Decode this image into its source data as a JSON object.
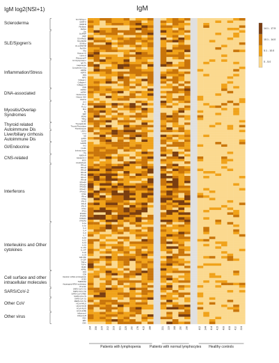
{
  "header": {
    "side_title": "IgM log2(NSI+1)",
    "main_title": "IgM"
  },
  "row_groups": [
    {
      "label": "Scleroderma",
      "rows": [
        "Scl-70/Topo I",
        "CENP-A",
        "CENP-B",
        "Fibrillarin",
        "PM/Scl"
      ]
    },
    {
      "label": "SLE/Sjogren's",
      "rows": [
        "Sm",
        "Sm/RNP",
        "RNP",
        "SS-A/Ro52",
        "SS-A/Ro60",
        "SS-B/La",
        "U1-snRNP 68",
        "Ro/SSA",
        "C1q",
        "Histone H1",
        "Lamin A",
        "Ribosomal P"
      ]
    },
    {
      "label": "Inflammation/Stress",
      "rows": [
        "b2 Glycoprotein I",
        "IgG Fc",
        "Calprotectin",
        "Complement C1q",
        "HSP60",
        "HSP70",
        "PR3",
        "MPO",
        "Collagen I",
        "Collagen II",
        "Collagen IV",
        "GBM"
      ]
    },
    {
      "label": "DNA-associated",
      "rows": [
        "dsDNA",
        "ssDNA",
        "Nucleosome",
        "Histone H2A",
        "Histone"
      ]
    },
    {
      "label": "Myositis/Overlap Syndromes",
      "rows": [
        "Jo-1",
        "PL-7",
        "PL-12",
        "Mi-2",
        "Ku",
        "SRP",
        "MDA5",
        "TIF1g",
        "NXP2"
      ]
    },
    {
      "label": "Thyroid related Autoimmune Dis",
      "rows": [
        "Thyroglobulin",
        "Thyroid Peroxidase",
        "TSH Receptor"
      ]
    },
    {
      "label": "Liver/biliary cirrhosis Autoimmune Dis",
      "rows": [
        "LKM-1",
        "LC-1",
        "M2",
        "gp210",
        "sp100"
      ]
    },
    {
      "label": "GI/Endocrine",
      "rows": [
        "GAD65",
        "IA-2",
        "Insulin",
        "Intrinsic factor",
        "tTG"
      ]
    },
    {
      "label": "CNS-related",
      "rows": [
        "NMDA R",
        "Aquaporin 4",
        "MOG",
        "Amphiphysin"
      ]
    },
    {
      "label": "Interferons",
      "rows": [
        "IFN-a1",
        "IFN-a2",
        "IFN-a4",
        "IFN-a5",
        "IFN-a6",
        "IFN-a7",
        "IFN-a8",
        "IFN-a10",
        "IFN-a14",
        "IFN-a16",
        "IFN-a17",
        "IFN-a21",
        "IFN-b",
        "IFN-w",
        "IFN-g",
        "IFN-l1",
        "IFN-l2",
        "IFN-l3",
        "IFN-e",
        "IFN-k",
        "IFNAR1",
        "IFNAR2",
        "IFNGR1",
        "IFNGR2"
      ]
    },
    {
      "label": "Interleukins and Other cytokines",
      "rows": [
        "IL-1a",
        "IL-1b",
        "IL-2",
        "IL-4",
        "IL-6",
        "IL-7",
        "IL-10",
        "IL-12",
        "IL-13",
        "IL-15",
        "IL-17A",
        "IL-17F",
        "IL-22",
        "IL-23",
        "GM-CSF",
        "G-CSF",
        "TNF-a",
        "TGF-b",
        "BAFF",
        "APRIL"
      ]
    },
    {
      "label": "Cell surface and other intracellular molecules",
      "rows": [
        "CD4",
        "CD8",
        "Heparan sulfate proteoglycan",
        "ACE2",
        "TMPRSS2",
        "Asparaginyl-tRNA synthetase",
        "Vimentin"
      ]
    },
    {
      "label": "SARS/CoV-2",
      "rows": [
        "SARS-CoV-2 S1",
        "SARS-CoV-2 S2",
        "SARS-CoV-2 RBD",
        "SARS-CoV-2 N"
      ]
    },
    {
      "label": "Other CoV",
      "rows": [
        "SARS-CoV S1",
        "MERS-CoV S1",
        "HCoV-HKU1",
        "HCoV-OC43",
        "HCoV-NL63",
        "HCoV-229E"
      ]
    },
    {
      "label": "Other virus",
      "rows": [
        "Influenza A",
        "Influenza B",
        "RSV",
        "EBV",
        "CMV"
      ]
    }
  ],
  "column_groups": [
    {
      "label": "Patients with lymphopenia",
      "samples": [
        "194",
        "356",
        "205",
        "202",
        "203",
        "221",
        "225",
        "190",
        "176",
        "415",
        "188"
      ]
    },
    {
      "label": "Patients with normal lymphocytes",
      "samples": [
        "231",
        "123",
        "168",
        "190",
        "196"
      ]
    },
    {
      "label": "Healthy controls",
      "samples": [
        "402",
        "244",
        "414",
        "415",
        "406",
        "408",
        "410",
        "224"
      ]
    }
  ],
  "legend": [
    {
      "label": "14.1 - 17.5",
      "color": "#7a3e10"
    },
    {
      "label": "10.1 - 14.0",
      "color": "#c9750a"
    },
    {
      "label": "5.1 - 10.0",
      "color": "#f0a21a"
    },
    {
      "label": "0 - 5.0",
      "color": "#fbd98f"
    }
  ],
  "gap_color": "#e0e0e0",
  "chart_data": {
    "type": "heatmap",
    "title": "IgM",
    "color_scale_label": "IgM log2(NSI+1)",
    "value_bins": [
      [
        0,
        5.0
      ],
      [
        5.1,
        10.0
      ],
      [
        10.1,
        14.0
      ],
      [
        14.1,
        17.5
      ]
    ],
    "note": "cell values estimated as color-bin midpoints",
    "bin_midpoints": [
      2.5,
      7.5,
      12,
      15.8
    ]
  }
}
